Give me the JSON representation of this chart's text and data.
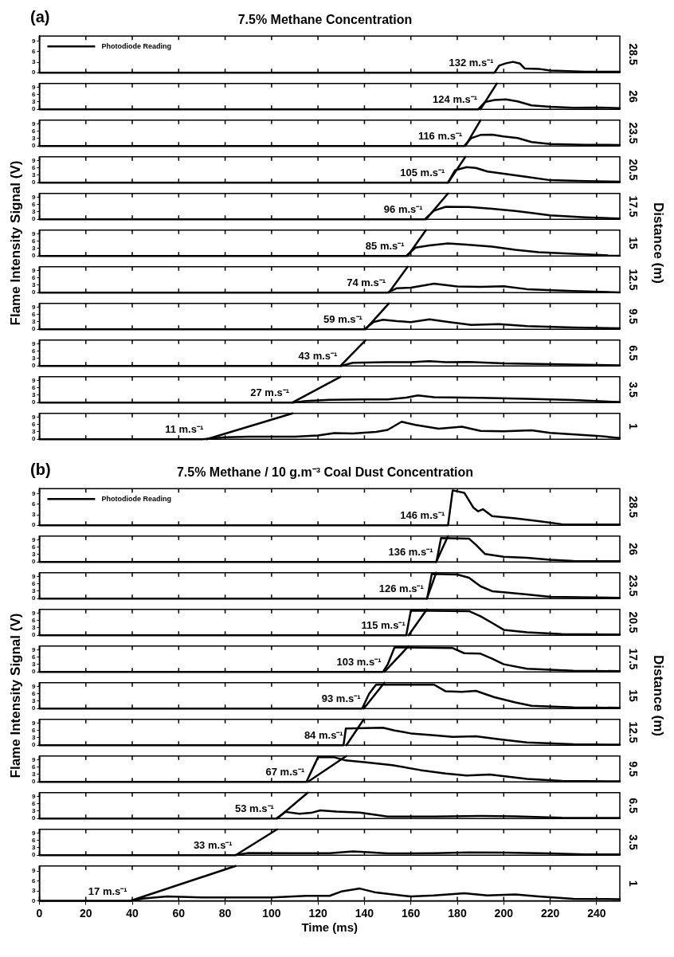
{
  "chart_data": [
    {
      "type": "line",
      "title": "7.5% Methane Concentration",
      "legend": "top left",
      "y2label": "28.5",
      "xlim": [
        0,
        250
      ],
      "xticks": [
        0,
        20,
        40,
        60,
        80,
        100,
        120,
        140,
        160,
        180,
        200,
        220,
        240
      ],
      "ylim": [
        0,
        10.5
      ],
      "yticks": [
        0,
        3,
        6,
        9
      ],
      "tick_labels": "y",
      "series": [
        {
          "name": "Photodiode Reading",
          "color": "#000000",
          "x": [
            0,
            196,
            198,
            201,
            204,
            207,
            209,
            215,
            220,
            235,
            250
          ],
          "values": [
            0,
            0,
            2,
            2.7,
            3.1,
            2.6,
            1.2,
            1.1,
            0.6,
            0.3,
            0.3
          ]
        }
      ],
      "annotations": [
        "(a)",
        {
          "text": "132 m.s⁻¹",
          "x": 197,
          "y": 0
        }
      ]
    },
    {
      "type": "line",
      "y2label": "26",
      "xlim": [
        0,
        250
      ],
      "xticks": [
        0,
        20,
        40,
        60,
        80,
        100,
        120,
        140,
        160,
        180,
        200,
        220,
        240
      ],
      "ylim": [
        0,
        10.5
      ],
      "yticks": [
        0,
        3,
        6,
        9
      ],
      "tick_labels": "y",
      "series": [
        {
          "color": "#000000",
          "x": [
            0,
            189,
            192,
            196,
            201,
            206,
            212,
            220,
            230,
            240,
            250
          ],
          "values": [
            0,
            0,
            3,
            3.8,
            4,
            3.2,
            1.6,
            1,
            0.6,
            0.7,
            0.5
          ]
        },
        {
          "color": "#000000",
          "x": [
            190,
            197
          ],
          "values": [
            0,
            10.5
          ]
        }
      ],
      "annotations": [
        {
          "text": "124 m.s⁻¹",
          "x": 190,
          "y": 0
        }
      ]
    },
    {
      "type": "line",
      "y2label": "23.5",
      "xlim": [
        0,
        250
      ],
      "xticks": [
        0,
        20,
        40,
        60,
        80,
        100,
        120,
        140,
        160,
        180,
        200,
        220,
        240
      ],
      "ylim": [
        0,
        10.5
      ],
      "yticks": [
        0,
        3,
        6,
        9
      ],
      "tick_labels": "y",
      "series": [
        {
          "color": "#000000",
          "x": [
            0,
            183,
            186,
            190,
            195,
            200,
            206,
            212,
            220,
            235,
            250
          ],
          "values": [
            0,
            0,
            3.2,
            4.5,
            4.6,
            3.9,
            3.2,
            1.6,
            0.8,
            0.5,
            0.4
          ]
        },
        {
          "color": "#000000",
          "x": [
            183.5,
            190
          ],
          "values": [
            0,
            10.5
          ]
        }
      ],
      "annotations": [
        {
          "text": "116 m.s⁻¹",
          "x": 183.5,
          "y": 0
        }
      ]
    },
    {
      "type": "line",
      "y2label": "20.5",
      "xlim": [
        0,
        250
      ],
      "xticks": [
        0,
        20,
        40,
        60,
        80,
        100,
        120,
        140,
        160,
        180,
        200,
        220,
        240
      ],
      "ylim": [
        0,
        10.5
      ],
      "yticks": [
        0,
        3,
        6,
        9
      ],
      "tick_labels": "y",
      "series": [
        {
          "color": "#000000",
          "x": [
            0,
            176,
            179,
            184,
            188,
            193,
            200,
            210,
            220,
            235,
            250
          ],
          "values": [
            0,
            0,
            5,
            6.3,
            6,
            4.5,
            3.6,
            2.3,
            1,
            0.6,
            0.4
          ]
        },
        {
          "color": "#000000",
          "x": [
            176,
            183.5
          ],
          "values": [
            0,
            10.5
          ]
        }
      ],
      "annotations": [
        {
          "text": "105 m.s⁻¹",
          "x": 176,
          "y": 0
        }
      ]
    },
    {
      "type": "line",
      "y2label": "17.5",
      "xlim": [
        0,
        250
      ],
      "xticks": [
        0,
        20,
        40,
        60,
        80,
        100,
        120,
        140,
        160,
        180,
        200,
        220,
        240
      ],
      "ylim": [
        0,
        10.5
      ],
      "yticks": [
        0,
        3,
        6,
        9
      ],
      "tick_labels": "y",
      "series": [
        {
          "color": "#000000",
          "x": [
            0,
            166,
            170,
            175,
            185,
            195,
            205,
            212,
            220,
            235,
            250
          ],
          "values": [
            0,
            0,
            3.5,
            5.1,
            5,
            4.3,
            3.4,
            2.6,
            1.6,
            0.8,
            0.3
          ]
        },
        {
          "color": "#000000",
          "x": [
            166.5,
            176
          ],
          "values": [
            0,
            10.5
          ]
        }
      ],
      "annotations": [
        {
          "text": "96 m.s⁻¹",
          "x": 166.5,
          "y": 0
        }
      ]
    },
    {
      "type": "line",
      "y2label": "15",
      "ylabel": "Flame Intensity Signal (V)",
      "xlim": [
        0,
        250
      ],
      "xticks": [
        0,
        20,
        40,
        60,
        80,
        100,
        120,
        140,
        160,
        180,
        200,
        220,
        240
      ],
      "ylim": [
        0,
        10.5
      ],
      "yticks": [
        0,
        3,
        6,
        9
      ],
      "tick_labels": "y",
      "series": [
        {
          "color": "#000000",
          "x": [
            0,
            158,
            162,
            168,
            176,
            184,
            195,
            205,
            215,
            230,
            245,
            250
          ],
          "values": [
            0,
            0,
            3.4,
            4.3,
            5.1,
            4.6,
            3.8,
            2.5,
            1.5,
            0.9,
            0.2,
            0.1
          ]
        },
        {
          "color": "#000000",
          "x": [
            158.6,
            166.5
          ],
          "values": [
            0,
            10.5
          ]
        }
      ],
      "annotations": [
        {
          "text": "85 m.s⁻¹",
          "x": 158.6,
          "y": 0
        },
        "Distance (m)"
      ]
    },
    {
      "type": "line",
      "y2label": "12.5",
      "xlim": [
        0,
        250
      ],
      "xticks": [
        0,
        20,
        40,
        60,
        80,
        100,
        120,
        140,
        160,
        180,
        200,
        220,
        240
      ],
      "ylim": [
        0,
        10.5
      ],
      "yticks": [
        0,
        3,
        6,
        9
      ],
      "tick_labels": "y",
      "series": [
        {
          "color": "#000000",
          "x": [
            0,
            150,
            154,
            160,
            170,
            180,
            190,
            200,
            210,
            230,
            250
          ],
          "values": [
            0,
            0,
            1.8,
            2,
            3.6,
            2.5,
            2.3,
            2.6,
            1.4,
            0.6,
            0.1
          ]
        },
        {
          "color": "#000000",
          "x": [
            150.5,
            158.6
          ],
          "values": [
            0,
            10.5
          ]
        }
      ],
      "annotations": [
        {
          "text": "74 m.s⁻¹",
          "x": 150.5,
          "y": 0
        }
      ]
    },
    {
      "type": "line",
      "y2label": "9.5",
      "xlim": [
        0,
        250
      ],
      "xticks": [
        0,
        20,
        40,
        60,
        80,
        100,
        120,
        140,
        160,
        180,
        200,
        220,
        240
      ],
      "ylim": [
        0,
        10.5
      ],
      "yticks": [
        0,
        3,
        6,
        9
      ],
      "tick_labels": "y",
      "series": [
        {
          "color": "#000000",
          "x": [
            0,
            140,
            144,
            148,
            154,
            160,
            168,
            176,
            186,
            198,
            210,
            230,
            250
          ],
          "values": [
            0,
            0,
            3,
            3.9,
            3.3,
            2.9,
            4,
            3,
            1.8,
            2.1,
            1.3,
            0.7,
            0.4
          ]
        },
        {
          "color": "#000000",
          "x": [
            140.5,
            150.5
          ],
          "values": [
            0,
            10.5
          ]
        }
      ],
      "annotations": [
        {
          "text": "59 m.s⁻¹",
          "x": 140.5,
          "y": 0
        }
      ]
    },
    {
      "type": "line",
      "y2label": "6.5",
      "xlim": [
        0,
        250
      ],
      "xticks": [
        0,
        20,
        40,
        60,
        80,
        100,
        120,
        140,
        160,
        180,
        200,
        220,
        240
      ],
      "ylim": [
        0,
        10.5
      ],
      "yticks": [
        0,
        3,
        6,
        9
      ],
      "tick_labels": "y",
      "series": [
        {
          "color": "#000000",
          "x": [
            0,
            130,
            135,
            150,
            160,
            168,
            175,
            185,
            200,
            220,
            250
          ],
          "values": [
            0,
            0,
            1.3,
            1.5,
            1.5,
            1.9,
            1.5,
            1.6,
            1,
            0.7,
            0.2
          ]
        },
        {
          "color": "#000000",
          "x": [
            129.7,
            140.5
          ],
          "values": [
            0,
            10.5
          ]
        }
      ],
      "annotations": [
        {
          "text": "43 m.s⁻¹",
          "x": 129.7,
          "y": 0
        }
      ]
    },
    {
      "type": "line",
      "y2label": "3.5",
      "xlim": [
        0,
        250
      ],
      "xticks": [
        0,
        20,
        40,
        60,
        80,
        100,
        120,
        140,
        160,
        180,
        200,
        220,
        240
      ],
      "ylim": [
        0,
        10.5
      ],
      "yticks": [
        0,
        3,
        6,
        9
      ],
      "tick_labels": "y",
      "series": [
        {
          "color": "#000000",
          "x": [
            0,
            109,
            115,
            125,
            140,
            150,
            158,
            163,
            170,
            190,
            210,
            230,
            250
          ],
          "values": [
            0,
            0,
            0.6,
            1.1,
            1.3,
            1.3,
            2,
            2.9,
            2.2,
            1.9,
            1.5,
            1,
            0.2
          ]
        },
        {
          "color": "#000000",
          "x": [
            109,
            129.7
          ],
          "values": [
            0,
            10.5
          ]
        }
      ],
      "annotations": [
        {
          "text": "27 m.s⁻¹",
          "x": 109,
          "y": 0
        }
      ]
    },
    {
      "type": "line",
      "y2label": "1",
      "xlim": [
        0,
        250
      ],
      "xticks": [
        0,
        20,
        40,
        60,
        80,
        100,
        120,
        140,
        160,
        180,
        200,
        220,
        240
      ],
      "ylim": [
        0,
        10.5
      ],
      "yticks": [
        0,
        3,
        6,
        9
      ],
      "tick_labels": "y",
      "series": [
        {
          "color": "#000000",
          "x": [
            0,
            70,
            80,
            90,
            110,
            120,
            127,
            135,
            145,
            150,
            156,
            162,
            172,
            182,
            190,
            200,
            212,
            220,
            240,
            250
          ],
          "values": [
            0,
            0,
            0.8,
            1,
            1,
            1.5,
            2.5,
            2.3,
            3,
            3.8,
            7.1,
            5.8,
            4.3,
            5.1,
            3.4,
            3.2,
            3.6,
            2.6,
            1.4,
            0.5
          ]
        },
        {
          "color": "#000000",
          "x": [
            72,
            109
          ],
          "values": [
            0,
            10.5
          ]
        }
      ],
      "annotations": [
        {
          "text": "11 m.s⁻¹",
          "x": 72,
          "y": 0
        }
      ]
    },
    {
      "type": "line",
      "title": "7.5% Methane / 10 g.m⁻³ Coal Dust Concentration",
      "legend": "top left",
      "y2label": "28.5",
      "xlim": [
        0,
        250
      ],
      "xticks": [
        0,
        20,
        40,
        60,
        80,
        100,
        120,
        140,
        160,
        180,
        200,
        220,
        240
      ],
      "ylim": [
        0,
        10.5
      ],
      "yticks": [
        0,
        3,
        6,
        9
      ],
      "tick_labels": "y",
      "series": [
        {
          "name": "Photodiode Reading",
          "color": "#000000",
          "x": [
            0,
            176,
            178,
            183,
            187,
            189,
            191,
            195,
            205,
            215,
            225,
            250
          ],
          "values": [
            0,
            0,
            10,
            9.3,
            5,
            4,
            4.6,
            2.6,
            2,
            1.2,
            0.3,
            0.2
          ]
        }
      ],
      "annotations": [
        "(b)",
        {
          "text": "146 m.s⁻¹",
          "x": 176,
          "y": 0
        }
      ]
    },
    {
      "type": "line",
      "y2label": "26",
      "xlim": [
        0,
        250
      ],
      "xticks": [
        0,
        20,
        40,
        60,
        80,
        100,
        120,
        140,
        160,
        180,
        200,
        220,
        240
      ],
      "ylim": [
        0,
        10.5
      ],
      "yticks": [
        0,
        3,
        6,
        9
      ],
      "tick_labels": "y",
      "series": [
        {
          "color": "#000000",
          "x": [
            0,
            171,
            173,
            185,
            188,
            192,
            200,
            210,
            220,
            230,
            250
          ],
          "values": [
            0,
            0,
            9.7,
            9.5,
            7,
            3.2,
            2.1,
            1.7,
            0.9,
            0.4,
            0.3
          ]
        },
        {
          "color": "#000000",
          "x": [
            170.9,
            176
          ],
          "values": [
            0,
            10.5
          ]
        }
      ],
      "annotations": [
        {
          "text": "136 m.s⁻¹",
          "x": 170.9,
          "y": 0
        }
      ]
    },
    {
      "type": "line",
      "y2label": "23.5",
      "xlim": [
        0,
        250
      ],
      "xticks": [
        0,
        20,
        40,
        60,
        80,
        100,
        120,
        140,
        160,
        180,
        200,
        220,
        240
      ],
      "ylim": [
        0,
        10.5
      ],
      "yticks": [
        0,
        3,
        6,
        9
      ],
      "tick_labels": "y",
      "series": [
        {
          "color": "#000000",
          "x": [
            0,
            167,
            169,
            180,
            185,
            190,
            195,
            200,
            210,
            220,
            250
          ],
          "values": [
            0,
            0,
            10,
            9.8,
            8.5,
            5,
            3,
            2.6,
            1.7,
            0.7,
            0.3
          ]
        },
        {
          "color": "#000000",
          "x": [
            166.9,
            170.9
          ],
          "values": [
            0,
            10.5
          ]
        }
      ],
      "annotations": [
        {
          "text": "126 m.s⁻¹",
          "x": 166.9,
          "y": 0
        }
      ]
    },
    {
      "type": "line",
      "y2label": "20.5",
      "xlim": [
        0,
        250
      ],
      "xticks": [
        0,
        20,
        40,
        60,
        80,
        100,
        120,
        140,
        160,
        180,
        200,
        220,
        240
      ],
      "ylim": [
        0,
        10.5
      ],
      "yticks": [
        0,
        3,
        6,
        9
      ],
      "tick_labels": "y",
      "series": [
        {
          "color": "#000000",
          "x": [
            0,
            158,
            160,
            185,
            190,
            195,
            200,
            210,
            225,
            250
          ],
          "values": [
            0,
            0,
            10,
            9.8,
            7.7,
            5,
            2.2,
            1.2,
            0.5,
            0.3
          ]
        },
        {
          "color": "#000000",
          "x": [
            159,
            166.9
          ],
          "values": [
            0,
            10.5
          ]
        }
      ],
      "annotations": [
        {
          "text": "115 m.s⁻¹",
          "x": 159,
          "y": 0
        }
      ]
    },
    {
      "type": "line",
      "y2label": "17.5",
      "xlim": [
        0,
        250
      ],
      "xticks": [
        0,
        20,
        40,
        60,
        80,
        100,
        120,
        140,
        160,
        180,
        200,
        220,
        240
      ],
      "ylim": [
        0,
        10.5
      ],
      "yticks": [
        0,
        3,
        6,
        9
      ],
      "tick_labels": "y",
      "series": [
        {
          "color": "#000000",
          "x": [
            0,
            148,
            150,
            153,
            178,
            183,
            190,
            195,
            200,
            210,
            230,
            250
          ],
          "values": [
            0,
            0,
            3,
            10,
            9.7,
            7.6,
            7.4,
            5.4,
            3.1,
            1.3,
            0.5,
            0.3
          ]
        },
        {
          "color": "#000000",
          "x": [
            148.6,
            159
          ],
          "values": [
            0,
            10.5
          ]
        }
      ],
      "annotations": [
        {
          "text": "103 m.s⁻¹",
          "x": 148.6,
          "y": 0
        }
      ]
    },
    {
      "type": "line",
      "y2label": "15",
      "ylabel": "Flame Intensity Signal (V)",
      "xlim": [
        0,
        250
      ],
      "xticks": [
        0,
        20,
        40,
        60,
        80,
        100,
        120,
        140,
        160,
        180,
        200,
        220,
        240
      ],
      "ylim": [
        0,
        10.5
      ],
      "yticks": [
        0,
        3,
        6,
        9
      ],
      "tick_labels": "y",
      "series": [
        {
          "color": "#000000",
          "x": [
            0,
            139,
            142,
            145,
            170,
            175,
            182,
            188,
            196,
            205,
            212,
            230,
            250
          ],
          "values": [
            0,
            0,
            6,
            9.7,
            9.7,
            7,
            6.8,
            7.2,
            4.6,
            2.5,
            1.1,
            0.5,
            0.3
          ]
        },
        {
          "color": "#000000",
          "x": [
            139.7,
            148.6
          ],
          "values": [
            0,
            10.5
          ]
        }
      ],
      "annotations": [
        {
          "text": "93 m.s⁻¹",
          "x": 139.7,
          "y": 0
        },
        "Distance (m)"
      ]
    },
    {
      "type": "line",
      "y2label": "12.5",
      "xlim": [
        0,
        250
      ],
      "xticks": [
        0,
        20,
        40,
        60,
        80,
        100,
        120,
        140,
        160,
        180,
        200,
        220,
        240
      ],
      "ylim": [
        0,
        10.5
      ],
      "yticks": [
        0,
        3,
        6,
        9
      ],
      "tick_labels": "y",
      "series": [
        {
          "color": "#000000",
          "x": [
            0,
            131,
            132,
            148,
            153,
            160,
            170,
            178,
            188,
            198,
            210,
            230,
            250
          ],
          "values": [
            0,
            0,
            6.8,
            7.1,
            6,
            4.8,
            4,
            3.4,
            3.6,
            2.4,
            1.1,
            0.4,
            0.2
          ]
        },
        {
          "color": "#000000",
          "x": [
            132.2,
            139.7
          ],
          "values": [
            0,
            10.5
          ]
        }
      ],
      "annotations": [
        {
          "text": "84 m.s⁻¹",
          "x": 132.2,
          "y": 0
        }
      ]
    },
    {
      "type": "line",
      "y2label": "9.5",
      "xlim": [
        0,
        250
      ],
      "xticks": [
        0,
        20,
        40,
        60,
        80,
        100,
        120,
        140,
        160,
        180,
        200,
        220,
        240
      ],
      "ylim": [
        0,
        10.5
      ],
      "yticks": [
        0,
        3,
        6,
        9
      ],
      "tick_labels": "y",
      "series": [
        {
          "color": "#000000",
          "x": [
            0,
            115,
            117,
            120,
            127,
            132,
            140,
            152,
            164,
            175,
            184,
            194,
            202,
            210,
            225,
            250
          ],
          "values": [
            0,
            0,
            4,
            10,
            10,
            8.7,
            8,
            6.8,
            4.8,
            3.4,
            2.6,
            3,
            2.1,
            1.2,
            0.4,
            0.2
          ]
        },
        {
          "color": "#000000",
          "x": [
            115.6,
            132.2
          ],
          "values": [
            0,
            10.5
          ]
        }
      ],
      "annotations": [
        {
          "text": "67 m.s⁻¹",
          "x": 115.6,
          "y": 0
        }
      ]
    },
    {
      "type": "line",
      "y2label": "6.5",
      "xlim": [
        0,
        250
      ],
      "xticks": [
        0,
        20,
        40,
        60,
        80,
        100,
        120,
        140,
        160,
        180,
        200,
        220,
        240
      ],
      "ylim": [
        0,
        10.5
      ],
      "yticks": [
        0,
        3,
        6,
        9
      ],
      "tick_labels": "y",
      "series": [
        {
          "color": "#000000",
          "x": [
            0,
            102,
            106,
            112,
            117,
            121,
            128,
            138,
            144,
            150,
            170,
            190,
            205,
            225,
            250
          ],
          "values": [
            0,
            0,
            2.7,
            1.9,
            2.3,
            3.3,
            2.8,
            2.4,
            1.6,
            0.8,
            0.8,
            1,
            0.9,
            0.3,
            0.2
          ]
        },
        {
          "color": "#000000",
          "x": [
            102.4,
            115.6
          ],
          "values": [
            0,
            10.5
          ]
        }
      ],
      "annotations": [
        {
          "text": "53 m.s⁻¹",
          "x": 102.4,
          "y": 0
        }
      ]
    },
    {
      "type": "line",
      "y2label": "3.5",
      "xlim": [
        0,
        250
      ],
      "xticks": [
        0,
        20,
        40,
        60,
        80,
        100,
        120,
        140,
        160,
        180,
        200,
        220,
        240
      ],
      "ylim": [
        0,
        10.5
      ],
      "yticks": [
        0,
        3,
        6,
        9
      ],
      "tick_labels": "y",
      "series": [
        {
          "color": "#000000",
          "x": [
            0,
            84,
            90,
            110,
            125,
            135,
            140,
            150,
            170,
            185,
            200,
            220,
            235,
            250
          ],
          "values": [
            0,
            0,
            0.9,
            0.8,
            0.8,
            1.5,
            1.3,
            0.7,
            0.8,
            1.1,
            1,
            0.7,
            0.3,
            0.3
          ]
        },
        {
          "color": "#000000",
          "x": [
            84.5,
            102.4
          ],
          "values": [
            0,
            10.5
          ]
        }
      ],
      "annotations": [
        {
          "text": "33 m.s⁻¹",
          "x": 84.5,
          "y": 0
        }
      ]
    },
    {
      "type": "line",
      "y2label": "1",
      "xlabel": "Time (ms)",
      "xlim": [
        0,
        250
      ],
      "xticks": [
        0,
        20,
        40,
        60,
        80,
        100,
        120,
        140,
        160,
        180,
        200,
        220,
        240
      ],
      "ylim": [
        0,
        10.5
      ],
      "yticks": [
        0,
        3,
        6,
        9
      ],
      "series": [
        {
          "color": "#000000",
          "x": [
            0,
            39,
            45,
            55,
            70,
            100,
            115,
            125,
            130,
            138,
            145,
            160,
            170,
            183,
            193,
            205,
            215,
            230,
            250
          ],
          "values": [
            0,
            0,
            0.7,
            1.3,
            1,
            1,
            1.5,
            1.5,
            2.8,
            3.7,
            2.5,
            1.3,
            1.6,
            2.3,
            1.6,
            1.9,
            1.3,
            0.6,
            0.5
          ]
        },
        {
          "color": "#000000",
          "x": [
            39.2,
            84.5
          ],
          "values": [
            0,
            10.5
          ]
        }
      ],
      "annotations": [
        {
          "text": "17 m.s⁻¹",
          "x": 39.2,
          "y": 0
        }
      ]
    }
  ]
}
